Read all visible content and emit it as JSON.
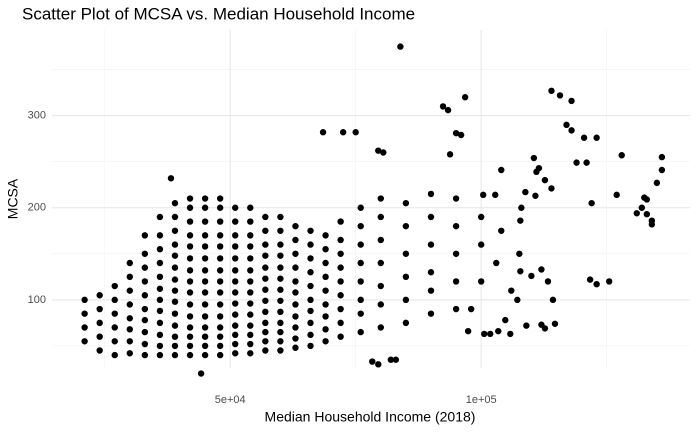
{
  "chart_data": {
    "type": "scatter",
    "title": "Scatter Plot of MCSA vs. Median Household Income",
    "x_label": "Median Household Income (2018)",
    "y_label": "MCSA",
    "color": "#000000",
    "xlim": [
      14500,
      141600
    ],
    "ylim": [
      26,
      393
    ],
    "xticks": [
      {
        "value": 50000,
        "label": "5e+04"
      },
      {
        "value": 100000,
        "label": "1e+05"
      }
    ],
    "yticks": [
      100,
      200,
      300
    ],
    "x_minor_grid": [
      25000,
      75000,
      125000
    ],
    "y_minor_grid": [
      50,
      150,
      250,
      350
    ],
    "grid": true,
    "x": [
      21000,
      21000,
      21000,
      21000,
      24000,
      24000,
      24000,
      24000,
      24000,
      27000,
      27000,
      27000,
      27000,
      27000,
      27000,
      30000,
      30000,
      30000,
      30000,
      30000,
      30000,
      30000,
      30000,
      33000,
      33000,
      33000,
      33000,
      33000,
      33000,
      33000,
      33000,
      33000,
      33000,
      36000,
      36000,
      36000,
      36000,
      36000,
      36000,
      36000,
      36000,
      36000,
      36000,
      36000,
      36000,
      39000,
      39000,
      39000,
      39000,
      39000,
      39000,
      39000,
      39000,
      39000,
      39000,
      39000,
      39000,
      39000,
      39000,
      42000,
      42000,
      42000,
      42000,
      42000,
      42000,
      42000,
      42000,
      42000,
      42000,
      42000,
      42000,
      42000,
      42000,
      42000,
      45000,
      45000,
      45000,
      45000,
      45000,
      45000,
      45000,
      45000,
      45000,
      45000,
      45000,
      45000,
      45000,
      45000,
      45000,
      48000,
      48000,
      48000,
      48000,
      48000,
      48000,
      48000,
      48000,
      48000,
      48000,
      48000,
      48000,
      48000,
      48000,
      48000,
      51000,
      51000,
      51000,
      51000,
      51000,
      51000,
      51000,
      51000,
      51000,
      51000,
      51000,
      51000,
      51000,
      51000,
      54000,
      54000,
      54000,
      54000,
      54000,
      54000,
      54000,
      54000,
      54000,
      54000,
      54000,
      54000,
      54000,
      54000,
      57000,
      57000,
      57000,
      57000,
      57000,
      57000,
      57000,
      57000,
      57000,
      57000,
      57000,
      57000,
      57000,
      60000,
      60000,
      60000,
      60000,
      60000,
      60000,
      60000,
      60000,
      60000,
      60000,
      60000,
      60000,
      60000,
      63000,
      63000,
      63000,
      63000,
      63000,
      63000,
      63000,
      63000,
      63000,
      63000,
      63000,
      66000,
      66000,
      66000,
      66000,
      66000,
      66000,
      66000,
      66000,
      66000,
      66000,
      69000,
      69000,
      69000,
      69000,
      69000,
      69000,
      69000,
      69000,
      69000,
      72000,
      72000,
      72000,
      72000,
      72000,
      72000,
      72000,
      72000,
      72000,
      76000,
      76000,
      76000,
      76000,
      76000,
      76000,
      76000,
      76000,
      80000,
      80000,
      80000,
      80000,
      80000,
      80000,
      80000,
      85000,
      85000,
      85000,
      85000,
      85000,
      85000,
      90000,
      90000,
      90000,
      90000,
      90000,
      90000,
      95000,
      95000,
      95000,
      95000,
      95000,
      83900,
      96800,
      92400,
      93400,
      68500,
      72500,
      75000,
      95000,
      79500,
      80500,
      108000,
      107800,
      110800,
      111000,
      111500,
      114000,
      115700,
      118000,
      117000,
      118000,
      120500,
      121000,
      119000,
      123000,
      127000,
      128000,
      122000,
      131000,
      132000,
      133000,
      135000,
      136000,
      136000,
      134000,
      134000,
      133000,
      132500,
      112700,
      110500,
      108800,
      114000,
      107600,
      112000,
      107800,
      110000,
      113300,
      125500,
      123000,
      121700,
      104800,
      97400,
      100600,
      101800,
      103400,
      105800,
      109000,
      112000,
      112700,
      114700,
      78300,
      79500,
      82000,
      83000,
      44200,
      38200,
      93800,
      96000,
      104000,
      102800,
      100400,
      114300,
      107200,
      100000,
      100000,
      100000,
      103000,
      98000,
      104000,
      106000
    ],
    "values": [
      55,
      70,
      85,
      100,
      45,
      60,
      75,
      90,
      105,
      40,
      55,
      70,
      85,
      100,
      115,
      42,
      55,
      68,
      80,
      95,
      110,
      125,
      140,
      40,
      52,
      65,
      78,
      90,
      105,
      120,
      135,
      150,
      170,
      40,
      50,
      62,
      75,
      88,
      100,
      112,
      125,
      140,
      155,
      170,
      190,
      40,
      50,
      60,
      72,
      85,
      98,
      110,
      122,
      135,
      148,
      160,
      175,
      190,
      205,
      40,
      50,
      60,
      70,
      82,
      95,
      108,
      120,
      132,
      145,
      158,
      170,
      185,
      200,
      210,
      40,
      50,
      60,
      70,
      82,
      95,
      108,
      120,
      132,
      145,
      158,
      170,
      185,
      200,
      210,
      40,
      50,
      60,
      70,
      82,
      95,
      108,
      120,
      132,
      145,
      158,
      170,
      185,
      200,
      210,
      42,
      52,
      62,
      72,
      84,
      96,
      108,
      120,
      132,
      145,
      158,
      170,
      185,
      200,
      42,
      52,
      62,
      72,
      84,
      96,
      108,
      120,
      132,
      145,
      158,
      170,
      185,
      200,
      45,
      55,
      65,
      75,
      87,
      99,
      111,
      123,
      135,
      148,
      160,
      175,
      190,
      45,
      55,
      65,
      75,
      87,
      99,
      111,
      123,
      135,
      148,
      160,
      175,
      190,
      48,
      58,
      70,
      82,
      95,
      108,
      120,
      135,
      150,
      165,
      180,
      50,
      62,
      75,
      88,
      100,
      115,
      130,
      145,
      160,
      175,
      55,
      68,
      82,
      95,
      110,
      125,
      140,
      155,
      170,
      60,
      75,
      90,
      105,
      120,
      135,
      150,
      165,
      185,
      65,
      85,
      100,
      120,
      140,
      160,
      180,
      200,
      70,
      95,
      115,
      140,
      165,
      190,
      210,
      75,
      100,
      125,
      150,
      180,
      205,
      85,
      110,
      130,
      160,
      190,
      215,
      90,
      120,
      150,
      180,
      210,
      375,
      320,
      310,
      306,
      282,
      282,
      282,
      281,
      262,
      260,
      200,
      186,
      213,
      239,
      243,
      327,
      322,
      316,
      290,
      284,
      276,
      249,
      249,
      276,
      214,
      257,
      205,
      194,
      200,
      193,
      227,
      255,
      241,
      186,
      182,
      209,
      211,
      230,
      254,
      217,
      221,
      150,
      133,
      131,
      126,
      120,
      120,
      117,
      122,
      78,
      66,
      63,
      63,
      66,
      63,
      72,
      73,
      69,
      74,
      33,
      30,
      35,
      35,
      20,
      232,
      258,
      279,
      241,
      214,
      214,
      100,
      100,
      190,
      160,
      120,
      140,
      90,
      175,
      110
    ]
  }
}
